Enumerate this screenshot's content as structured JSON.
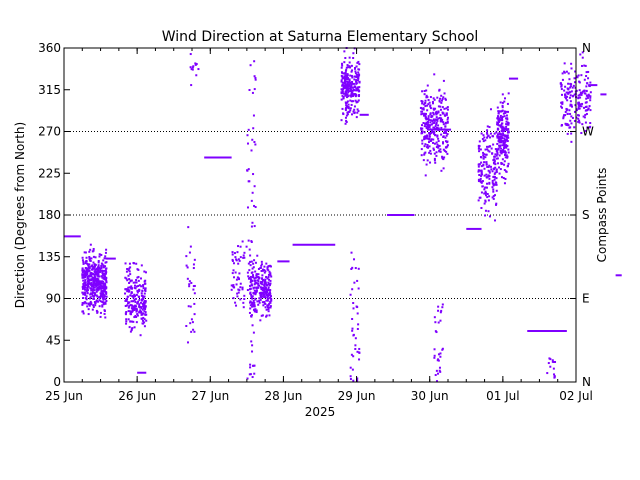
{
  "chart_data": {
    "type": "scatter",
    "title": "Wind Direction at Saturna Elementary School",
    "xlabel": "2025",
    "ylabel": "Direction (Degrees from North)",
    "ylabel_right": "Compass Points",
    "x_unit": "datetime",
    "xlim": [
      "2025-06-25T00:00",
      "2025-07-02T00:00"
    ],
    "ylim": [
      0,
      360
    ],
    "x_ticks": [
      {
        "t": "2025-06-25T00:00",
        "label": "25 Jun"
      },
      {
        "t": "2025-06-26T00:00",
        "label": "26 Jun"
      },
      {
        "t": "2025-06-27T00:00",
        "label": "27 Jun"
      },
      {
        "t": "2025-06-28T00:00",
        "label": "28 Jun"
      },
      {
        "t": "2025-06-29T00:00",
        "label": "29 Jun"
      },
      {
        "t": "2025-06-30T00:00",
        "label": "30 Jun"
      },
      {
        "t": "2025-07-01T00:00",
        "label": "01 Jul"
      },
      {
        "t": "2025-07-02T00:00",
        "label": "02 Jul"
      }
    ],
    "y_ticks": [
      0,
      45,
      90,
      135,
      180,
      225,
      270,
      315,
      360
    ],
    "compass_ticks": [
      {
        "value": 0,
        "label": "N"
      },
      {
        "value": 90,
        "label": "E"
      },
      {
        "value": 180,
        "label": "S"
      },
      {
        "value": 270,
        "label": "W"
      },
      {
        "value": 360,
        "label": "N"
      }
    ],
    "reference_lines": [
      90,
      180,
      270
    ],
    "grid": false,
    "marker_color": "#7f00ff",
    "steady_segments": [
      {
        "start": "2025-06-25T00:00",
        "end": "2025-06-25T05:30",
        "value": 157
      },
      {
        "start": "2025-06-25T14:00",
        "end": "2025-06-25T17:00",
        "value": 133
      },
      {
        "start": "2025-06-26T00:00",
        "end": "2025-06-26T03:00",
        "value": 10
      },
      {
        "start": "2025-06-26T22:00",
        "end": "2025-06-27T07:00",
        "value": 242
      },
      {
        "start": "2025-06-27T22:00",
        "end": "2025-06-28T02:00",
        "value": 130
      },
      {
        "start": "2025-06-28T03:00",
        "end": "2025-06-28T17:00",
        "value": 148
      },
      {
        "start": "2025-06-29T01:00",
        "end": "2025-06-29T04:00",
        "value": 288
      },
      {
        "start": "2025-06-29T10:00",
        "end": "2025-06-29T19:00",
        "value": 180
      },
      {
        "start": "2025-06-30T00:00",
        "end": "2025-06-30T07:00",
        "value": 272
      },
      {
        "start": "2025-06-30T12:00",
        "end": "2025-06-30T17:00",
        "value": 165
      },
      {
        "start": "2025-07-01T02:00",
        "end": "2025-07-01T05:00",
        "value": 327
      },
      {
        "start": "2025-07-01T08:00",
        "end": "2025-07-01T21:00",
        "value": 55
      },
      {
        "start": "2025-07-02T04:00",
        "end": "2025-07-02T07:00",
        "value": 320
      },
      {
        "start": "2025-07-02T08:00",
        "end": "2025-07-02T10:00",
        "value": 310
      },
      {
        "start": "2025-07-02T13:00",
        "end": "2025-07-02T15:00",
        "value": 115
      }
    ],
    "scatter_clusters": [
      {
        "start": "2025-06-25T06:00",
        "end": "2025-06-25T14:00",
        "center": 108,
        "spread": 30,
        "count": 480
      },
      {
        "start": "2025-06-25T20:00",
        "end": "2025-06-26T03:00",
        "center": 88,
        "spread": 32,
        "count": 240
      },
      {
        "start": "2025-06-26T16:00",
        "end": "2025-06-26T19:00",
        "center": 100,
        "spread": 60,
        "count": 30
      },
      {
        "start": "2025-06-27T07:00",
        "end": "2025-06-27T13:00",
        "center": 115,
        "spread": 35,
        "count": 60
      },
      {
        "start": "2025-06-27T13:00",
        "end": "2025-06-27T20:00",
        "center": 102,
        "spread": 30,
        "count": 260
      },
      {
        "start": "2025-06-28T19:00",
        "end": "2025-06-29T01:00",
        "center": 318,
        "spread": 30,
        "count": 260
      },
      {
        "start": "2025-06-29T21:00",
        "end": "2025-06-30T06:00",
        "center": 275,
        "spread": 40,
        "count": 300
      },
      {
        "start": "2025-06-30T16:00",
        "end": "2025-06-30T22:00",
        "center": 230,
        "spread": 45,
        "count": 180
      },
      {
        "start": "2025-06-30T22:00",
        "end": "2025-07-01T02:00",
        "center": 265,
        "spread": 40,
        "count": 220
      },
      {
        "start": "2025-07-01T19:00",
        "end": "2025-07-02T05:00",
        "center": 305,
        "spread": 35,
        "count": 200
      }
    ],
    "scatter_streaks": [
      {
        "time": "2025-06-27T13:30",
        "low": 0,
        "high": 360,
        "count": 60
      },
      {
        "time": "2025-06-28T23:30",
        "low": 0,
        "high": 140,
        "count": 40
      },
      {
        "time": "2025-06-30T03:00",
        "low": 0,
        "high": 90,
        "count": 30
      },
      {
        "time": "2025-07-01T16:00",
        "low": 0,
        "high": 30,
        "count": 15
      },
      {
        "time": "2025-06-26T19:00",
        "low": 320,
        "high": 360,
        "count": 12
      }
    ]
  }
}
